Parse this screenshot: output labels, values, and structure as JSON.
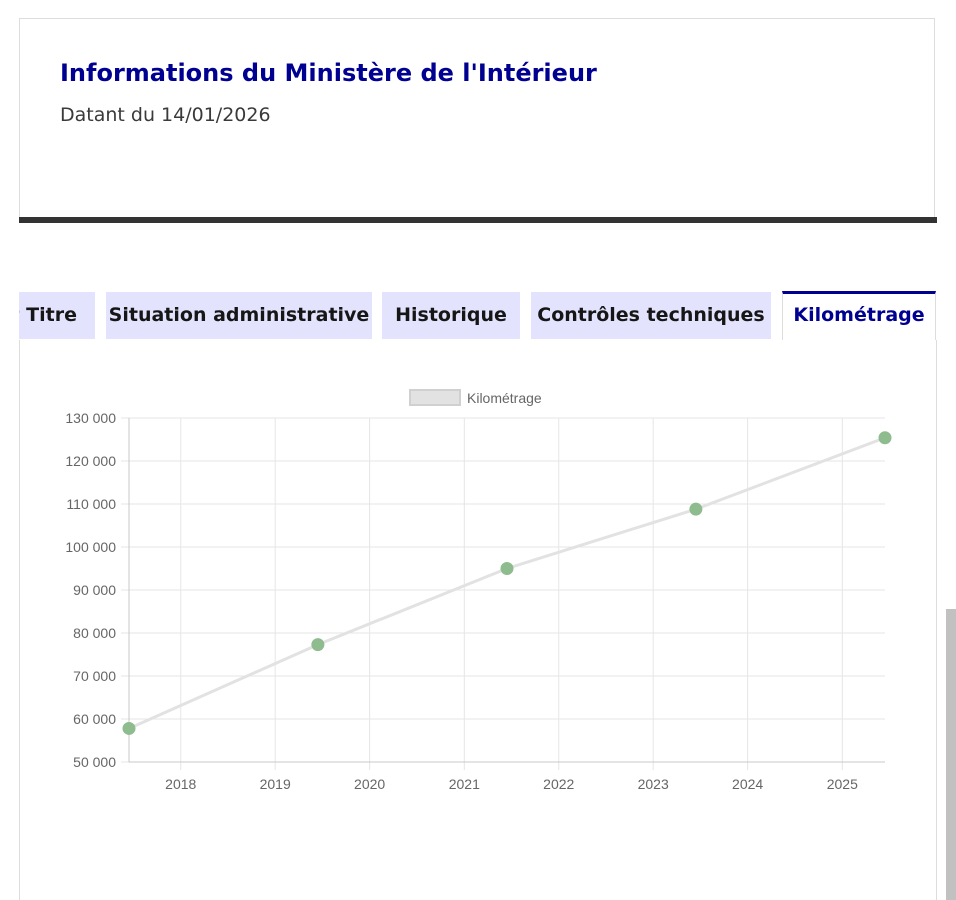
{
  "info": {
    "title": "Informations du Ministère de l'Intérieur",
    "date": "Datant du 14/01/2026"
  },
  "tabs": [
    {
      "label": "t Titre",
      "selected": false
    },
    {
      "label": "Situation administrative",
      "selected": false
    },
    {
      "label": "Historique",
      "selected": false
    },
    {
      "label": "Contrôles techniques",
      "selected": false
    },
    {
      "label": "Kilométrage",
      "selected": true
    }
  ],
  "colors": {
    "title": "#000091",
    "tab_bg": "#e3e3fd",
    "line": "#e2e2e2",
    "point": "#8fbc8f"
  },
  "chart_data": {
    "type": "line",
    "title": "",
    "xlabel": "",
    "ylabel": "",
    "legend": {
      "label": "Kilométrage",
      "position": "top-center"
    },
    "x_ticks": [
      "2018",
      "2019",
      "2020",
      "2021",
      "2022",
      "2023",
      "2024",
      "2025"
    ],
    "y_ticks": [
      "50 000",
      "60 000",
      "70 000",
      "80 000",
      "90 000",
      "100 000",
      "110 000",
      "120 000",
      "130 000"
    ],
    "ylim": [
      50000,
      130000
    ],
    "xlim": [
      "2017-06-15",
      "2025-06-15"
    ],
    "grid": true,
    "series": [
      {
        "name": "Kilométrage",
        "points": [
          {
            "x": "2017-06-15",
            "y": 57800
          },
          {
            "x": "2019-06-15",
            "y": 77300
          },
          {
            "x": "2021-06-15",
            "y": 95000
          },
          {
            "x": "2023-06-15",
            "y": 108800
          },
          {
            "x": "2025-06-15",
            "y": 125400
          }
        ]
      }
    ]
  }
}
